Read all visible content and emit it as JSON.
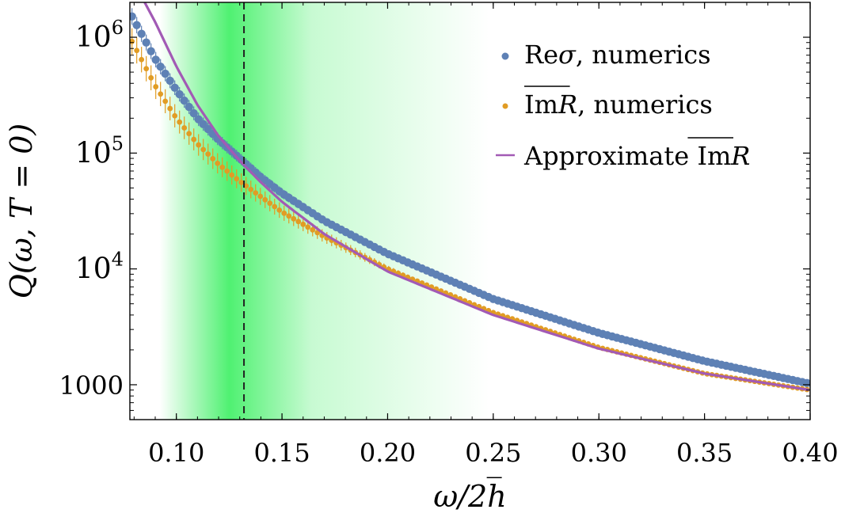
{
  "chart_data": {
    "type": "scatter",
    "xlabel": "ω/2h̅",
    "ylabel": "Q(ω, T = 0)",
    "xlim": [
      0.078,
      0.4
    ],
    "ylim": [
      500,
      2000000
    ],
    "yscale": "log",
    "x_ticks": [
      {
        "value": 0.1,
        "label": "0.10"
      },
      {
        "value": 0.15,
        "label": "0.15"
      },
      {
        "value": 0.2,
        "label": "0.20"
      },
      {
        "value": 0.25,
        "label": "0.25"
      },
      {
        "value": 0.3,
        "label": "0.30"
      },
      {
        "value": 0.35,
        "label": "0.35"
      },
      {
        "value": 0.4,
        "label": "0.40"
      }
    ],
    "y_ticks": [
      {
        "value": 1000,
        "label": "1000",
        "base": "",
        "exp": ""
      },
      {
        "value": 10000,
        "label": "",
        "base": "10",
        "exp": "4"
      },
      {
        "value": 100000,
        "label": "",
        "base": "10",
        "exp": "5"
      },
      {
        "value": 1000000,
        "label": "",
        "base": "10",
        "exp": "6"
      }
    ],
    "vertical_marker": {
      "x": 0.132,
      "style": "dashed",
      "color": "#222222"
    },
    "band": {
      "x_start": 0.092,
      "x_peak": 0.125,
      "x_end": 0.248,
      "color": "#46f06a"
    },
    "series": [
      {
        "name": "Reσ, numerics",
        "label_parts": {
          "plain": "Re",
          "italic": "σ",
          "rest": ", numerics",
          "overline": false
        },
        "kind": "markers_with_errorbars",
        "color": "#5e81b5",
        "x": [
          0.08,
          0.09,
          0.1,
          0.11,
          0.12,
          0.13,
          0.14,
          0.15,
          0.17,
          0.2,
          0.25,
          0.3,
          0.35,
          0.4
        ],
        "y": [
          1400000,
          650000,
          350000,
          200000,
          130000,
          90000,
          62000,
          45000,
          26000,
          13500,
          5500,
          2800,
          1600,
          1020
        ],
        "err_frac": 0.18
      },
      {
        "name": "ImR, numerics",
        "label_parts": {
          "plain": "Im",
          "italic": "R",
          "rest": ", numerics",
          "overline": true
        },
        "kind": "markers_with_errorbars",
        "color": "#e19c24",
        "x": [
          0.08,
          0.09,
          0.1,
          0.11,
          0.12,
          0.13,
          0.14,
          0.15,
          0.17,
          0.2,
          0.25,
          0.3,
          0.35,
          0.4
        ],
        "y": [
          850000,
          380000,
          200000,
          120000,
          80000,
          57000,
          42000,
          31000,
          19000,
          10000,
          4200,
          2100,
          1250,
          900
        ],
        "err_frac": 0.3
      },
      {
        "name": "Approximate ImR",
        "label_parts": {
          "plain": "Approximate Im",
          "italic": "R",
          "rest": "",
          "overline": true
        },
        "kind": "line",
        "color": "#a25ab5",
        "x": [
          0.085,
          0.09,
          0.1,
          0.11,
          0.12,
          0.13,
          0.14,
          0.15,
          0.17,
          0.2,
          0.25,
          0.3,
          0.35,
          0.4
        ],
        "y": [
          2000000,
          1350000,
          560000,
          260000,
          140000,
          86000,
          56000,
          38000,
          20000,
          9500,
          4000,
          2050,
          1250,
          900
        ]
      }
    ],
    "legend": {
      "position": "top-right"
    },
    "grid": false
  }
}
